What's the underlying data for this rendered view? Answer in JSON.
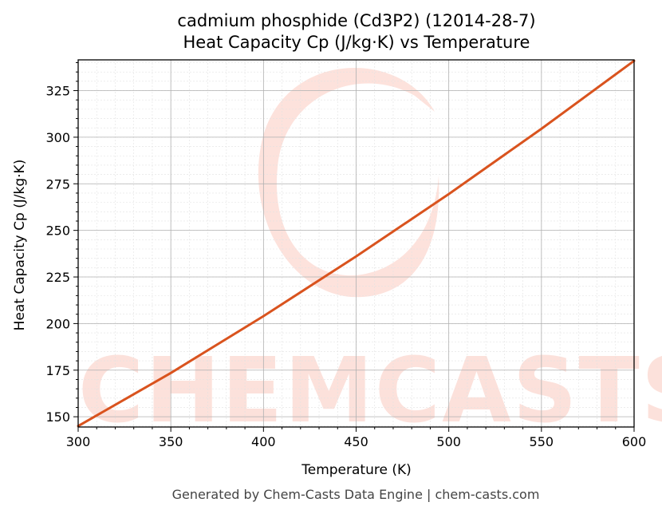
{
  "chart_data": {
    "type": "line",
    "title": "cadmium phosphide (Cd3P2) (12014-28-7)",
    "subtitle": "Heat Capacity Cp (J/kg·K) vs Temperature",
    "xlabel": "Temperature (K)",
    "ylabel": "Heat Capacity Cp (J/kg·K)",
    "xlim": [
      300,
      600
    ],
    "ylim": [
      144.5,
      341.5
    ],
    "x_ticks": [
      300,
      350,
      400,
      450,
      500,
      550,
      600
    ],
    "y_ticks": [
      150,
      175,
      200,
      225,
      250,
      275,
      300,
      325
    ],
    "grid": true,
    "minor_grid": true,
    "legend": "none",
    "series": [
      {
        "color": "#d9531e",
        "x": [
          300,
          350,
          400,
          450,
          500,
          550,
          600
        ],
        "y": [
          145,
          173.5,
          204,
          236,
          269.5,
          304.5,
          341
        ]
      }
    ]
  },
  "watermark": {
    "text": "CHEMCASTS",
    "color": "#fcd8d0"
  },
  "footer": "Generated by Chem-Casts Data Engine | chem-casts.com"
}
